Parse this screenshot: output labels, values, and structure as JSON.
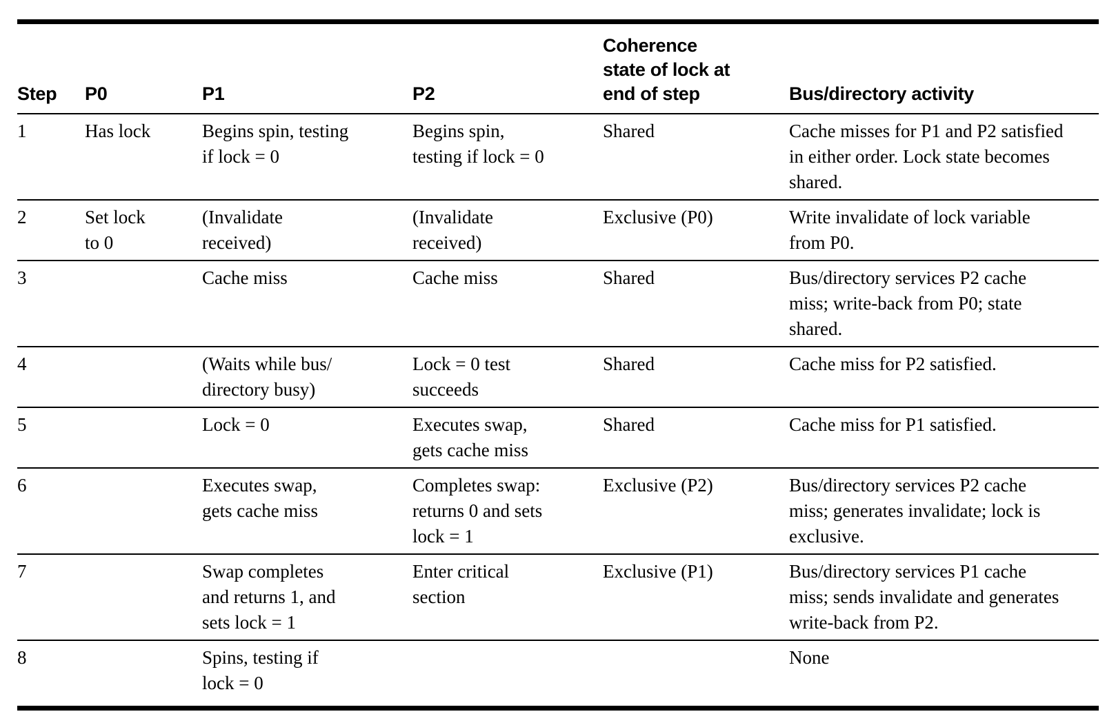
{
  "colors": {
    "text": "#000000",
    "background": "#ffffff",
    "rule": "#000000"
  },
  "table": {
    "columns": [
      {
        "key": "step",
        "label": "Step"
      },
      {
        "key": "p0",
        "label": "P0"
      },
      {
        "key": "p1",
        "label": "P1"
      },
      {
        "key": "p2",
        "label": "P2"
      },
      {
        "key": "coherence",
        "label": "Coherence\nstate of lock at\nend of step"
      },
      {
        "key": "bus",
        "label": "Bus/directory activity"
      }
    ],
    "rows": [
      {
        "step": "1",
        "p0": "Has lock",
        "p1": "Begins spin, testing\nif lock = 0",
        "p2": "Begins spin,\ntesting if lock = 0",
        "coherence": "Shared",
        "bus": "Cache misses for P1 and P2 satisfied\nin either order. Lock state becomes\nshared."
      },
      {
        "step": "2",
        "p0": "Set lock\nto 0",
        "p1": "(Invalidate\nreceived)",
        "p2": "(Invalidate\nreceived)",
        "coherence": "Exclusive (P0)",
        "bus": "Write invalidate of lock variable\nfrom P0."
      },
      {
        "step": "3",
        "p0": "",
        "p1": "Cache miss",
        "p2": "Cache miss",
        "coherence": "Shared",
        "bus": "Bus/directory services P2 cache\nmiss; write-back from P0; state\nshared."
      },
      {
        "step": "4",
        "p0": "",
        "p1": "(Waits while bus/\ndirectory busy)",
        "p2": "Lock = 0 test\nsucceeds",
        "coherence": "Shared",
        "bus": "Cache miss for P2 satisfied."
      },
      {
        "step": "5",
        "p0": "",
        "p1": "Lock = 0",
        "p2": "Executes swap,\ngets cache miss",
        "coherence": "Shared",
        "bus": "Cache miss for P1 satisfied."
      },
      {
        "step": "6",
        "p0": "",
        "p1": "Executes swap,\ngets cache miss",
        "p2": "Completes swap:\nreturns 0 and sets\nlock = 1",
        "coherence": "Exclusive (P2)",
        "bus": "Bus/directory services P2 cache\nmiss; generates invalidate; lock is\nexclusive."
      },
      {
        "step": "7",
        "p0": "",
        "p1": "Swap completes\nand returns 1, and\nsets lock = 1",
        "p2": "Enter critical\nsection",
        "coherence": "Exclusive (P1)",
        "bus": "Bus/directory services P1 cache\nmiss; sends invalidate and generates\nwrite-back from P2."
      },
      {
        "step": "8",
        "p0": "",
        "p1": "Spins, testing if\nlock = 0",
        "p2": "",
        "coherence": "",
        "bus": "None"
      }
    ]
  }
}
